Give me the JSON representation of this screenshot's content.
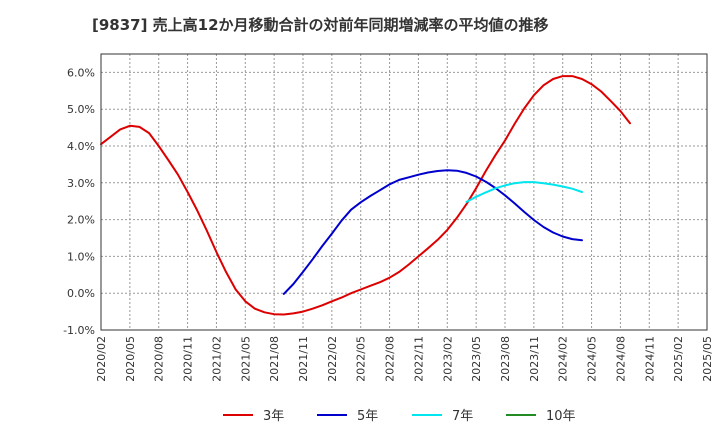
{
  "chart_data": {
    "type": "line",
    "title": "[9837]  売上高12か月移動合計の対前年同期増減率の平均値の推移",
    "xlabel": "",
    "ylabel": "",
    "ylim": [
      -1.0,
      6.5
    ],
    "y_ticks": [
      "6.0%",
      "5.0%",
      "4.0%",
      "3.0%",
      "2.0%",
      "1.0%",
      "0.0%",
      "-1.0%"
    ],
    "y_tick_values": [
      6,
      5,
      4,
      3,
      2,
      1,
      0,
      -1
    ],
    "x_ticks": [
      "2020/02",
      "2020/05",
      "2020/08",
      "2020/11",
      "2021/02",
      "2021/05",
      "2021/08",
      "2021/11",
      "2022/02",
      "2022/05",
      "2022/08",
      "2022/11",
      "2023/02",
      "2023/05",
      "2023/08",
      "2023/11",
      "2024/02",
      "2024/05",
      "2024/08",
      "2024/11",
      "2025/02",
      "2025/05"
    ],
    "grid": true,
    "legend_position": "bottom",
    "series": [
      {
        "name": "3年",
        "color": "#dd0000",
        "points": [
          [
            "2020/02",
            4.05
          ],
          [
            "2020/03",
            4.25
          ],
          [
            "2020/04",
            4.45
          ],
          [
            "2020/05",
            4.55
          ],
          [
            "2020/06",
            4.52
          ],
          [
            "2020/07",
            4.35
          ],
          [
            "2020/08",
            4.0
          ],
          [
            "2020/09",
            3.62
          ],
          [
            "2020/10",
            3.22
          ],
          [
            "2020/11",
            2.75
          ],
          [
            "2020/12",
            2.25
          ],
          [
            "2021/01",
            1.7
          ],
          [
            "2021/02",
            1.12
          ],
          [
            "2021/03",
            0.58
          ],
          [
            "2021/04",
            0.1
          ],
          [
            "2021/05",
            -0.22
          ],
          [
            "2021/06",
            -0.42
          ],
          [
            "2021/07",
            -0.52
          ],
          [
            "2021/08",
            -0.57
          ],
          [
            "2021/09",
            -0.58
          ],
          [
            "2021/10",
            -0.55
          ],
          [
            "2021/11",
            -0.5
          ],
          [
            "2021/12",
            -0.42
          ],
          [
            "2022/01",
            -0.33
          ],
          [
            "2022/02",
            -0.22
          ],
          [
            "2022/03",
            -0.12
          ],
          [
            "2022/04",
            0.0
          ],
          [
            "2022/05",
            0.1
          ],
          [
            "2022/06",
            0.2
          ],
          [
            "2022/07",
            0.3
          ],
          [
            "2022/08",
            0.42
          ],
          [
            "2022/09",
            0.58
          ],
          [
            "2022/10",
            0.78
          ],
          [
            "2022/11",
            1.0
          ],
          [
            "2022/12",
            1.22
          ],
          [
            "2023/01",
            1.45
          ],
          [
            "2023/02",
            1.72
          ],
          [
            "2023/03",
            2.05
          ],
          [
            "2023/04",
            2.42
          ],
          [
            "2023/05",
            2.85
          ],
          [
            "2023/06",
            3.32
          ],
          [
            "2023/07",
            3.75
          ],
          [
            "2023/08",
            4.15
          ],
          [
            "2023/09",
            4.6
          ],
          [
            "2023/10",
            5.02
          ],
          [
            "2023/11",
            5.38
          ],
          [
            "2023/12",
            5.65
          ],
          [
            "2024/01",
            5.82
          ],
          [
            "2024/02",
            5.9
          ],
          [
            "2024/03",
            5.9
          ],
          [
            "2024/04",
            5.82
          ],
          [
            "2024/05",
            5.68
          ],
          [
            "2024/06",
            5.48
          ],
          [
            "2024/07",
            5.22
          ],
          [
            "2024/08",
            4.95
          ],
          [
            "2024/09",
            4.62
          ]
        ]
      },
      {
        "name": "5年",
        "color": "#0000cc",
        "points": [
          [
            "2021/09",
            -0.02
          ],
          [
            "2021/10",
            0.25
          ],
          [
            "2021/11",
            0.58
          ],
          [
            "2021/12",
            0.92
          ],
          [
            "2022/01",
            1.28
          ],
          [
            "2022/02",
            1.62
          ],
          [
            "2022/03",
            1.97
          ],
          [
            "2022/04",
            2.27
          ],
          [
            "2022/05",
            2.47
          ],
          [
            "2022/06",
            2.64
          ],
          [
            "2022/07",
            2.8
          ],
          [
            "2022/08",
            2.96
          ],
          [
            "2022/09",
            3.08
          ],
          [
            "2022/10",
            3.15
          ],
          [
            "2022/11",
            3.22
          ],
          [
            "2022/12",
            3.28
          ],
          [
            "2023/01",
            3.32
          ],
          [
            "2023/02",
            3.34
          ],
          [
            "2023/03",
            3.33
          ],
          [
            "2023/04",
            3.27
          ],
          [
            "2023/05",
            3.17
          ],
          [
            "2023/06",
            3.03
          ],
          [
            "2023/07",
            2.86
          ],
          [
            "2023/08",
            2.66
          ],
          [
            "2023/09",
            2.44
          ],
          [
            "2023/10",
            2.21
          ],
          [
            "2023/11",
            1.99
          ],
          [
            "2023/12",
            1.8
          ],
          [
            "2024/01",
            1.65
          ],
          [
            "2024/02",
            1.54
          ],
          [
            "2024/03",
            1.47
          ],
          [
            "2024/04",
            1.44
          ]
        ]
      },
      {
        "name": "7年",
        "color": "#00e5ee",
        "points": [
          [
            "2023/04",
            2.48
          ],
          [
            "2023/05",
            2.62
          ],
          [
            "2023/06",
            2.74
          ],
          [
            "2023/07",
            2.85
          ],
          [
            "2023/08",
            2.93
          ],
          [
            "2023/09",
            2.99
          ],
          [
            "2023/10",
            3.02
          ],
          [
            "2023/11",
            3.02
          ],
          [
            "2023/12",
            2.99
          ],
          [
            "2024/01",
            2.95
          ],
          [
            "2024/02",
            2.9
          ],
          [
            "2024/03",
            2.84
          ],
          [
            "2024/04",
            2.75
          ]
        ]
      },
      {
        "name": "10年",
        "color": "#228b22",
        "points": []
      }
    ]
  }
}
